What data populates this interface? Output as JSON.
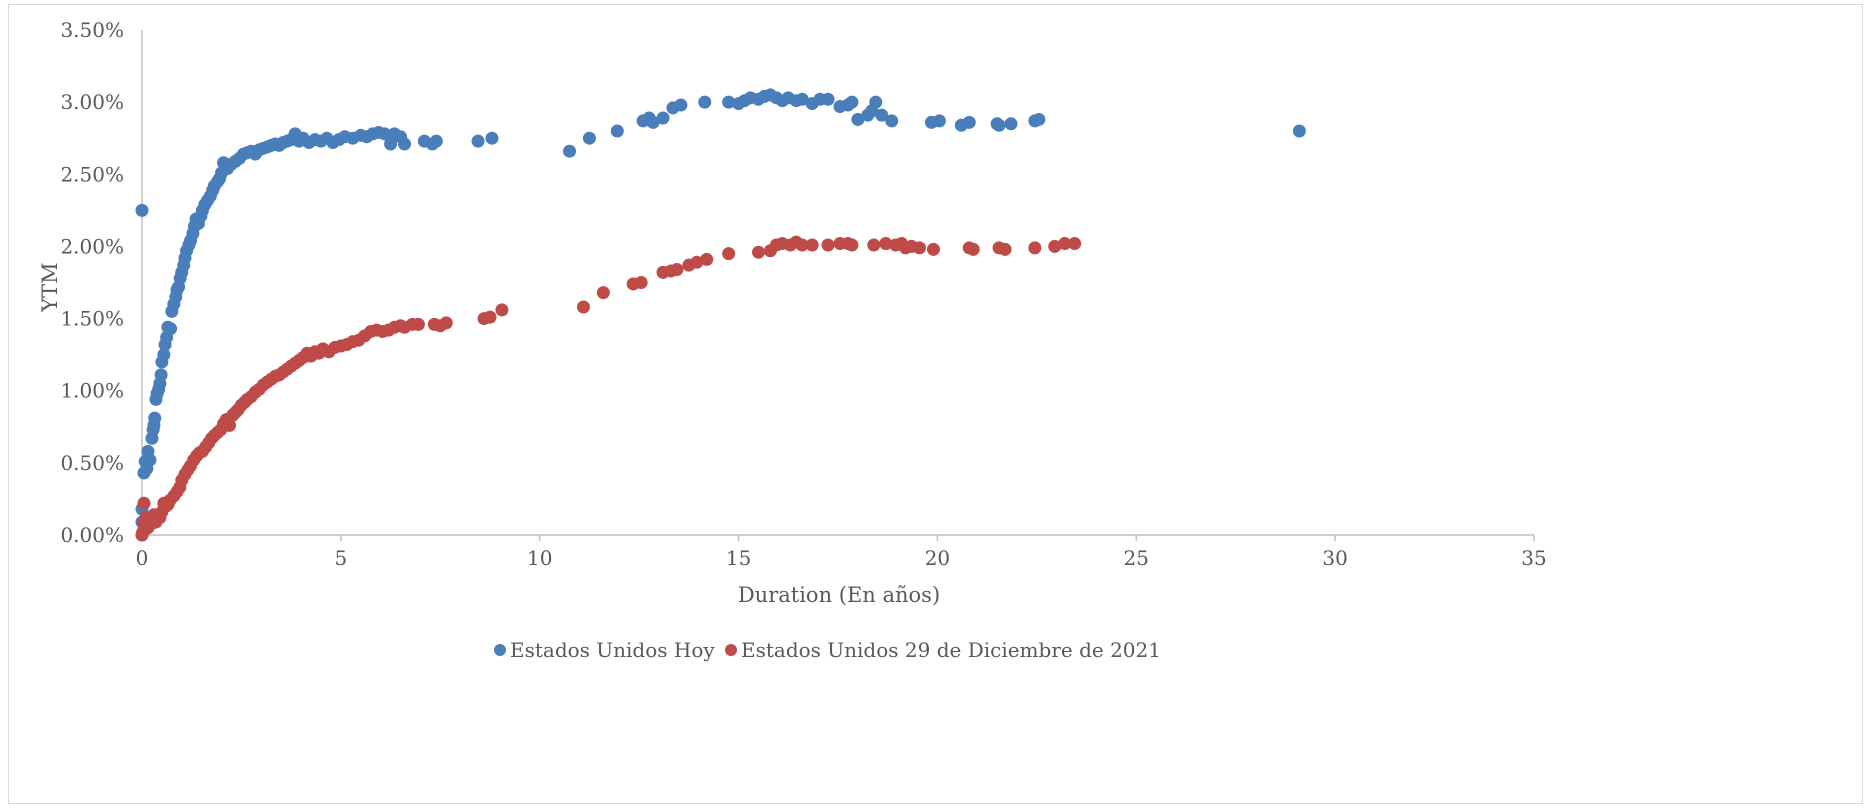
{
  "chart_data": {
    "type": "scatter",
    "xlabel": "Duration (En años)",
    "ylabel": "YTM",
    "xlim": [
      0,
      35
    ],
    "ylim": [
      0,
      0.035
    ],
    "x_ticks": [
      0,
      5,
      10,
      15,
      20,
      25,
      30,
      35
    ],
    "x_tick_labels": [
      "0",
      "5",
      "10",
      "15",
      "20",
      "25",
      "30",
      "35"
    ],
    "y_ticks": [
      0,
      0.005,
      0.01,
      0.015,
      0.02,
      0.025,
      0.03,
      0.035
    ],
    "y_tick_labels": [
      "0.00%",
      "0.50%",
      "1.00%",
      "1.50%",
      "2.00%",
      "2.50%",
      "3.00%",
      "3.50%"
    ],
    "grid": false,
    "legend_position": "bottom",
    "series": [
      {
        "name": "Estados Unidos Hoy",
        "color": "#4a7ebb",
        "points": [
          [
            0,
            0
          ],
          [
            0,
            0.0009
          ],
          [
            0,
            0.0018
          ],
          [
            0,
            0.0225
          ],
          [
            0.05,
            0.0043
          ],
          [
            0.08,
            0.0051
          ],
          [
            0.12,
            0.0046
          ],
          [
            0.15,
            0.0058
          ],
          [
            0.2,
            0.0052
          ],
          [
            0.25,
            0.0067
          ],
          [
            0.28,
            0.0073
          ],
          [
            0.3,
            0.0076
          ],
          [
            0.32,
            0.0081
          ],
          [
            0.35,
            0.0094
          ],
          [
            0.38,
            0.0098
          ],
          [
            0.42,
            0.0101
          ],
          [
            0.45,
            0.0105
          ],
          [
            0.48,
            0.0111
          ],
          [
            0.5,
            0.012
          ],
          [
            0.55,
            0.0125
          ],
          [
            0.58,
            0.0132
          ],
          [
            0.62,
            0.0137
          ],
          [
            0.65,
            0.0144
          ],
          [
            0.72,
            0.0143
          ],
          [
            0.75,
            0.0155
          ],
          [
            0.8,
            0.016
          ],
          [
            0.85,
            0.0165
          ],
          [
            0.88,
            0.017
          ],
          [
            0.92,
            0.0172
          ],
          [
            0.96,
            0.0178
          ],
          [
            1.0,
            0.0182
          ],
          [
            1.05,
            0.0187
          ],
          [
            1.08,
            0.0192
          ],
          [
            1.12,
            0.0197
          ],
          [
            1.18,
            0.0201
          ],
          [
            1.22,
            0.0204
          ],
          [
            1.28,
            0.0209
          ],
          [
            1.32,
            0.0214
          ],
          [
            1.36,
            0.0219
          ],
          [
            1.42,
            0.0216
          ],
          [
            1.48,
            0.0221
          ],
          [
            1.52,
            0.0225
          ],
          [
            1.58,
            0.0229
          ],
          [
            1.65,
            0.0232
          ],
          [
            1.72,
            0.0235
          ],
          [
            1.78,
            0.0239
          ],
          [
            1.82,
            0.0242
          ],
          [
            1.9,
            0.0245
          ],
          [
            1.95,
            0.0247
          ],
          [
            2.0,
            0.0251
          ],
          [
            2.05,
            0.0258
          ],
          [
            2.15,
            0.0254
          ],
          [
            2.25,
            0.0257
          ],
          [
            2.35,
            0.0259
          ],
          [
            2.45,
            0.0261
          ],
          [
            2.55,
            0.0264
          ],
          [
            2.65,
            0.0265
          ],
          [
            2.75,
            0.0266
          ],
          [
            2.85,
            0.0264
          ],
          [
            2.95,
            0.0267
          ],
          [
            3.05,
            0.0268
          ],
          [
            3.15,
            0.0269
          ],
          [
            3.25,
            0.027
          ],
          [
            3.35,
            0.0271
          ],
          [
            3.45,
            0.027
          ],
          [
            3.55,
            0.0272
          ],
          [
            3.65,
            0.0273
          ],
          [
            3.75,
            0.0274
          ],
          [
            3.85,
            0.0278
          ],
          [
            3.95,
            0.0273
          ],
          [
            4.05,
            0.0275
          ],
          [
            4.2,
            0.0272
          ],
          [
            4.35,
            0.0274
          ],
          [
            4.5,
            0.0273
          ],
          [
            4.65,
            0.0275
          ],
          [
            4.8,
            0.0272
          ],
          [
            4.95,
            0.0274
          ],
          [
            5.1,
            0.0276
          ],
          [
            5.3,
            0.0275
          ],
          [
            5.5,
            0.0277
          ],
          [
            5.65,
            0.0276
          ],
          [
            5.8,
            0.0278
          ],
          [
            5.95,
            0.0279
          ],
          [
            6.1,
            0.0278
          ],
          [
            6.25,
            0.0271
          ],
          [
            6.35,
            0.0278
          ],
          [
            6.5,
            0.0276
          ],
          [
            6.6,
            0.0271
          ],
          [
            7.1,
            0.0273
          ],
          [
            7.3,
            0.0271
          ],
          [
            7.4,
            0.0273
          ],
          [
            8.45,
            0.0273
          ],
          [
            8.8,
            0.0275
          ],
          [
            10.75,
            0.0266
          ],
          [
            11.25,
            0.0275
          ],
          [
            11.95,
            0.028
          ],
          [
            12.6,
            0.0287
          ],
          [
            12.75,
            0.0289
          ],
          [
            12.85,
            0.0286
          ],
          [
            13.1,
            0.0289
          ],
          [
            13.35,
            0.0296
          ],
          [
            13.55,
            0.0298
          ],
          [
            14.15,
            0.03
          ],
          [
            14.75,
            0.03
          ],
          [
            15.0,
            0.0299
          ],
          [
            15.15,
            0.0301
          ],
          [
            15.3,
            0.0303
          ],
          [
            15.5,
            0.0302
          ],
          [
            15.65,
            0.0304
          ],
          [
            15.8,
            0.0305
          ],
          [
            15.95,
            0.0303
          ],
          [
            16.1,
            0.0301
          ],
          [
            16.25,
            0.0303
          ],
          [
            16.45,
            0.0301
          ],
          [
            16.6,
            0.0302
          ],
          [
            16.85,
            0.0299
          ],
          [
            17.05,
            0.0302
          ],
          [
            17.25,
            0.0302
          ],
          [
            17.55,
            0.0297
          ],
          [
            17.75,
            0.0298
          ],
          [
            17.85,
            0.03
          ],
          [
            18.0,
            0.0288
          ],
          [
            18.25,
            0.0291
          ],
          [
            18.35,
            0.0294
          ],
          [
            18.45,
            0.03
          ],
          [
            18.6,
            0.0291
          ],
          [
            18.85,
            0.0287
          ],
          [
            19.85,
            0.0286
          ],
          [
            20.05,
            0.0287
          ],
          [
            20.6,
            0.0284
          ],
          [
            20.8,
            0.0286
          ],
          [
            21.5,
            0.0285
          ],
          [
            21.55,
            0.0284
          ],
          [
            21.85,
            0.0285
          ],
          [
            22.45,
            0.0287
          ],
          [
            22.55,
            0.0288
          ],
          [
            29.1,
            0.028
          ]
        ]
      },
      {
        "name": "Estados Unidos 29 de Diciembre de 2021",
        "color": "#be4b48",
        "points": [
          [
            0,
            0
          ],
          [
            0.02,
            0.0002
          ],
          [
            0.05,
            0.0008
          ],
          [
            0.05,
            0.0022
          ],
          [
            0.1,
            0.0012
          ],
          [
            0.15,
            0.0005
          ],
          [
            0.2,
            0.0011
          ],
          [
            0.25,
            0.0008
          ],
          [
            0.3,
            0.0014
          ],
          [
            0.35,
            0.0009
          ],
          [
            0.4,
            0.0013
          ],
          [
            0.45,
            0.0012
          ],
          [
            0.5,
            0.0016
          ],
          [
            0.55,
            0.0022
          ],
          [
            0.6,
            0.002
          ],
          [
            0.65,
            0.0021
          ],
          [
            0.7,
            0.0024
          ],
          [
            0.8,
            0.0027
          ],
          [
            0.88,
            0.003
          ],
          [
            0.95,
            0.0033
          ],
          [
            1.0,
            0.0038
          ],
          [
            1.08,
            0.0042
          ],
          [
            1.15,
            0.0045
          ],
          [
            1.22,
            0.0048
          ],
          [
            1.3,
            0.0052
          ],
          [
            1.38,
            0.0055
          ],
          [
            1.45,
            0.0057
          ],
          [
            1.52,
            0.0058
          ],
          [
            1.6,
            0.0061
          ],
          [
            1.68,
            0.0064
          ],
          [
            1.75,
            0.0067
          ],
          [
            1.82,
            0.0069
          ],
          [
            1.9,
            0.0071
          ],
          [
            1.98,
            0.0073
          ],
          [
            2.05,
            0.0077
          ],
          [
            2.12,
            0.008
          ],
          [
            2.2,
            0.0076
          ],
          [
            2.28,
            0.0083
          ],
          [
            2.35,
            0.0085
          ],
          [
            2.42,
            0.0087
          ],
          [
            2.5,
            0.009
          ],
          [
            2.58,
            0.0092
          ],
          [
            2.65,
            0.0094
          ],
          [
            2.75,
            0.0096
          ],
          [
            2.85,
            0.0099
          ],
          [
            2.95,
            0.0101
          ],
          [
            3.05,
            0.0104
          ],
          [
            3.15,
            0.0106
          ],
          [
            3.25,
            0.0108
          ],
          [
            3.35,
            0.011
          ],
          [
            3.45,
            0.0111
          ],
          [
            3.55,
            0.0113
          ],
          [
            3.65,
            0.0115
          ],
          [
            3.75,
            0.0117
          ],
          [
            3.85,
            0.0119
          ],
          [
            3.95,
            0.0121
          ],
          [
            4.05,
            0.0123
          ],
          [
            4.15,
            0.0126
          ],
          [
            4.25,
            0.0124
          ],
          [
            4.35,
            0.0127
          ],
          [
            4.45,
            0.0126
          ],
          [
            4.55,
            0.0129
          ],
          [
            4.7,
            0.0127
          ],
          [
            4.85,
            0.013
          ],
          [
            5.0,
            0.0131
          ],
          [
            5.15,
            0.0132
          ],
          [
            5.3,
            0.0134
          ],
          [
            5.45,
            0.0135
          ],
          [
            5.6,
            0.0138
          ],
          [
            5.75,
            0.0141
          ],
          [
            5.9,
            0.0142
          ],
          [
            6.05,
            0.0141
          ],
          [
            6.2,
            0.0142
          ],
          [
            6.35,
            0.0144
          ],
          [
            6.5,
            0.0145
          ],
          [
            6.6,
            0.0144
          ],
          [
            6.8,
            0.0146
          ],
          [
            6.95,
            0.0146
          ],
          [
            7.35,
            0.0146
          ],
          [
            7.5,
            0.0145
          ],
          [
            7.65,
            0.0147
          ],
          [
            8.6,
            0.015
          ],
          [
            8.75,
            0.0151
          ],
          [
            9.05,
            0.0156
          ],
          [
            11.1,
            0.0158
          ],
          [
            11.6,
            0.0168
          ],
          [
            12.35,
            0.0174
          ],
          [
            12.55,
            0.0175
          ],
          [
            13.1,
            0.0182
          ],
          [
            13.3,
            0.0183
          ],
          [
            13.45,
            0.0184
          ],
          [
            13.75,
            0.0187
          ],
          [
            13.95,
            0.0189
          ],
          [
            14.2,
            0.0191
          ],
          [
            14.75,
            0.0195
          ],
          [
            15.5,
            0.0196
          ],
          [
            15.8,
            0.0197
          ],
          [
            15.95,
            0.0201
          ],
          [
            16.1,
            0.0202
          ],
          [
            16.3,
            0.0201
          ],
          [
            16.45,
            0.0203
          ],
          [
            16.6,
            0.0201
          ],
          [
            16.85,
            0.0201
          ],
          [
            17.25,
            0.0201
          ],
          [
            17.55,
            0.0202
          ],
          [
            17.75,
            0.0202
          ],
          [
            17.85,
            0.0201
          ],
          [
            18.4,
            0.0201
          ],
          [
            18.7,
            0.0202
          ],
          [
            18.95,
            0.0201
          ],
          [
            19.1,
            0.0202
          ],
          [
            19.2,
            0.0199
          ],
          [
            19.35,
            0.02
          ],
          [
            19.55,
            0.0199
          ],
          [
            19.9,
            0.0198
          ],
          [
            20.8,
            0.0199
          ],
          [
            20.9,
            0.0198
          ],
          [
            21.55,
            0.0199
          ],
          [
            21.7,
            0.0198
          ],
          [
            22.45,
            0.0199
          ],
          [
            22.95,
            0.02
          ],
          [
            23.2,
            0.0202
          ],
          [
            23.45,
            0.0202
          ]
        ]
      }
    ]
  }
}
